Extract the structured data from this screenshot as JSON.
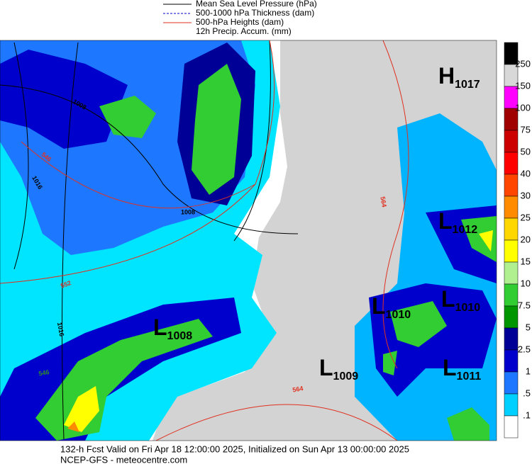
{
  "legend": [
    "Mean Sea Level Pressure (hPa)",
    "500-1000 hPa Thickness (dam)",
    "500-hPa Heights (dam)",
    "12h Precip. Accum. (mm)"
  ],
  "colorbar": [
    "250",
    "150",
    "100",
    "75",
    "50",
    "40",
    "30",
    "25",
    "20",
    "15",
    "10",
    "7.5",
    "5",
    "2.5",
    "1",
    ".5",
    ".1"
  ],
  "systems": [
    {
      "letter": "H",
      "value": "1017"
    },
    {
      "letter": "L",
      "value": "1012"
    },
    {
      "letter": "L",
      "value": "1010"
    },
    {
      "letter": "L",
      "value": "1010"
    },
    {
      "letter": "L",
      "value": "1008"
    },
    {
      "letter": "L",
      "value": "1009"
    },
    {
      "letter": "L",
      "value": "1011"
    }
  ],
  "contour_labels": [
    "1008",
    "1016",
    "1008",
    "1016",
    "546",
    "552",
    "564",
    "564",
    "546"
  ],
  "footer": [
    "132-h Fcst Valid on Fri Apr 18 12:00:00 2025, Initialized on Sun Apr 13 00:00:00 2025",
    "NCEP-GFS  -  meteocentre.com"
  ]
}
